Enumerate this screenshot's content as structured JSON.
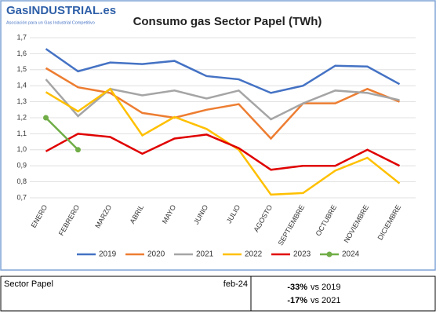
{
  "logo": {
    "name": "GasINDUSTRIAL.es",
    "tagline": "Asociación para un Gas Industrial Competitivo"
  },
  "chart_data": {
    "type": "line",
    "title": "Consumo gas Sector Papel (TWh)",
    "categories": [
      "ENERO",
      "FEBRERO",
      "MARZO",
      "ABRIL",
      "MAYO",
      "JUNIO",
      "JULIO",
      "AGOSTO",
      "SEPTIEMBRE",
      "OCTUBRE",
      "NOVIEMBRE",
      "DICIEMBRE"
    ],
    "series": [
      {
        "name": "2019",
        "color": "#4472c4",
        "values": [
          1.63,
          1.49,
          1.545,
          1.535,
          1.555,
          1.46,
          1.44,
          1.355,
          1.4,
          1.525,
          1.52,
          1.41
        ]
      },
      {
        "name": "2020",
        "color": "#ed7d31",
        "values": [
          1.51,
          1.39,
          1.355,
          1.23,
          1.2,
          1.25,
          1.285,
          1.07,
          1.29,
          1.29,
          1.38,
          1.3
        ]
      },
      {
        "name": "2021",
        "color": "#a5a5a5",
        "values": [
          1.44,
          1.21,
          1.38,
          1.34,
          1.37,
          1.32,
          1.37,
          1.19,
          1.29,
          1.37,
          1.355,
          1.31
        ]
      },
      {
        "name": "2022",
        "color": "#ffc000",
        "values": [
          1.36,
          1.24,
          1.38,
          1.09,
          1.205,
          1.13,
          1.0,
          0.72,
          0.73,
          0.87,
          0.95,
          0.79
        ]
      },
      {
        "name": "2023",
        "color": "#e00000",
        "values": [
          0.99,
          1.1,
          1.08,
          0.975,
          1.07,
          1.095,
          1.01,
          0.875,
          0.9,
          0.9,
          1.0,
          0.9
        ]
      },
      {
        "name": "2024",
        "color": "#70ad47",
        "markers": true,
        "values": [
          1.2,
          1.0,
          null,
          null,
          null,
          null,
          null,
          null,
          null,
          null,
          null,
          null
        ]
      }
    ],
    "ylim": [
      0.7,
      1.7
    ],
    "yticks": [
      {
        "value": 0.7,
        "label": "0,7"
      },
      {
        "value": 0.8,
        "label": "0,8"
      },
      {
        "value": 0.9,
        "label": "0,9"
      },
      {
        "value": 1.0,
        "label": "1,0"
      },
      {
        "value": 1.1,
        "label": "1,1"
      },
      {
        "value": 1.2,
        "label": "1,2"
      },
      {
        "value": 1.3,
        "label": "1,3"
      },
      {
        "value": 1.4,
        "label": "1,4"
      },
      {
        "value": 1.5,
        "label": "1,5"
      },
      {
        "value": 1.6,
        "label": "1,6"
      },
      {
        "value": 1.7,
        "label": "1,7"
      }
    ],
    "grid": true,
    "legend": "bottom"
  },
  "table": {
    "rows": [
      [
        "Sector Papel",
        "feb-24",
        "-33%",
        "vs 2019"
      ],
      [
        "-17%",
        "vs 2021"
      ]
    ]
  }
}
